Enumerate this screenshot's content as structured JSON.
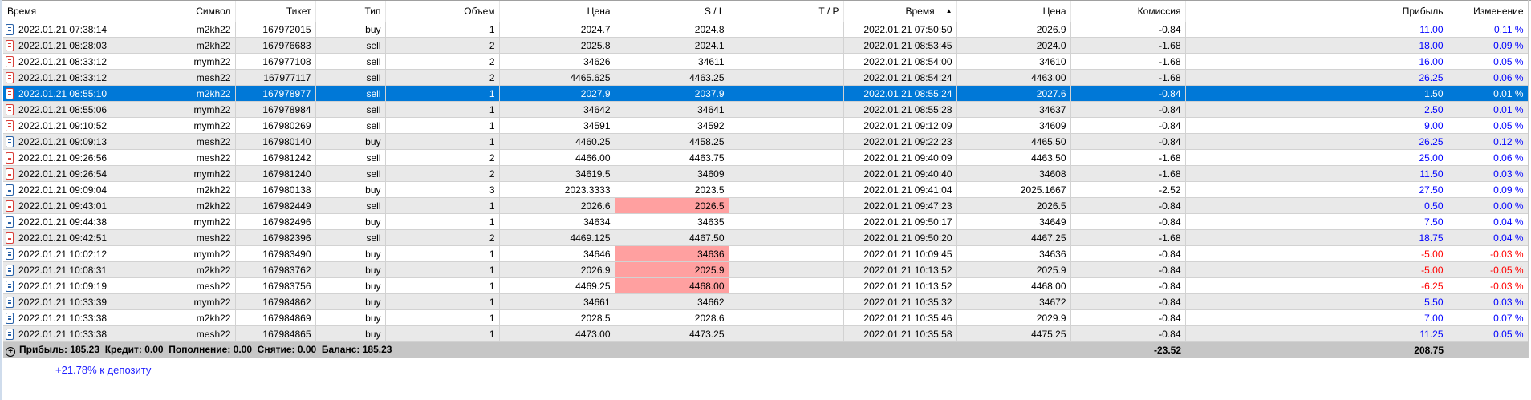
{
  "columns": [
    "Время",
    "Символ",
    "Тикет",
    "Тип",
    "Объем",
    "Цена",
    "S / L",
    "T / P",
    "Время",
    "Цена",
    "Комиссия",
    "Прибыль",
    "Изменение"
  ],
  "sort_column": 8,
  "sort_icon": "sort-ascending-icon",
  "colors": {
    "selected": "#0078d7",
    "profit": "#0000ff",
    "loss": "#ff0000",
    "sl_highlight": "#ffa0a0",
    "buy_icon": "#2a62a8",
    "sell_icon": "#d9403a"
  },
  "rows": [
    {
      "open_time": "2022.01.21 07:38:14",
      "symbol": "m2kh22",
      "ticket": "167972015",
      "type": "buy",
      "volume": "1",
      "open_price": "2024.7",
      "sl": "2024.8",
      "tp": "",
      "close_time": "2022.01.21 07:50:50",
      "close_price": "2026.9",
      "commission": "-0.84",
      "profit": "11.00",
      "change": "0.11 %"
    },
    {
      "open_time": "2022.01.21 08:28:03",
      "symbol": "m2kh22",
      "ticket": "167976683",
      "type": "sell",
      "volume": "2",
      "open_price": "2025.8",
      "sl": "2024.1",
      "tp": "",
      "close_time": "2022.01.21 08:53:45",
      "close_price": "2024.0",
      "commission": "-1.68",
      "profit": "18.00",
      "change": "0.09 %"
    },
    {
      "open_time": "2022.01.21 08:33:12",
      "symbol": "mymh22",
      "ticket": "167977108",
      "type": "sell",
      "volume": "2",
      "open_price": "34626",
      "sl": "34611",
      "tp": "",
      "close_time": "2022.01.21 08:54:00",
      "close_price": "34610",
      "commission": "-1.68",
      "profit": "16.00",
      "change": "0.05 %"
    },
    {
      "open_time": "2022.01.21 08:33:12",
      "symbol": "mesh22",
      "ticket": "167977117",
      "type": "sell",
      "volume": "2",
      "open_price": "4465.625",
      "sl": "4463.25",
      "tp": "",
      "close_time": "2022.01.21 08:54:24",
      "close_price": "4463.00",
      "commission": "-1.68",
      "profit": "26.25",
      "change": "0.06 %"
    },
    {
      "open_time": "2022.01.21 08:55:10",
      "symbol": "m2kh22",
      "ticket": "167978977",
      "type": "sell",
      "volume": "1",
      "open_price": "2027.9",
      "sl": "2037.9",
      "tp": "",
      "close_time": "2022.01.21 08:55:24",
      "close_price": "2027.6",
      "commission": "-0.84",
      "profit": "1.50",
      "change": "0.01 %",
      "selected": true
    },
    {
      "open_time": "2022.01.21 08:55:06",
      "symbol": "mymh22",
      "ticket": "167978984",
      "type": "sell",
      "volume": "1",
      "open_price": "34642",
      "sl": "34641",
      "tp": "",
      "close_time": "2022.01.21 08:55:28",
      "close_price": "34637",
      "commission": "-0.84",
      "profit": "2.50",
      "change": "0.01 %"
    },
    {
      "open_time": "2022.01.21 09:10:52",
      "symbol": "mymh22",
      "ticket": "167980269",
      "type": "sell",
      "volume": "1",
      "open_price": "34591",
      "sl": "34592",
      "tp": "",
      "close_time": "2022.01.21 09:12:09",
      "close_price": "34609",
      "commission": "-0.84",
      "profit": "9.00",
      "change": "0.05 %"
    },
    {
      "open_time": "2022.01.21 09:09:13",
      "symbol": "mesh22",
      "ticket": "167980140",
      "type": "buy",
      "volume": "1",
      "open_price": "4460.25",
      "sl": "4458.25",
      "tp": "",
      "close_time": "2022.01.21 09:22:23",
      "close_price": "4465.50",
      "commission": "-0.84",
      "profit": "26.25",
      "change": "0.12 %"
    },
    {
      "open_time": "2022.01.21 09:26:56",
      "symbol": "mesh22",
      "ticket": "167981242",
      "type": "sell",
      "volume": "2",
      "open_price": "4466.00",
      "sl": "4463.75",
      "tp": "",
      "close_time": "2022.01.21 09:40:09",
      "close_price": "4463.50",
      "commission": "-1.68",
      "profit": "25.00",
      "change": "0.06 %"
    },
    {
      "open_time": "2022.01.21 09:26:54",
      "symbol": "mymh22",
      "ticket": "167981240",
      "type": "sell",
      "volume": "2",
      "open_price": "34619.5",
      "sl": "34609",
      "tp": "",
      "close_time": "2022.01.21 09:40:40",
      "close_price": "34608",
      "commission": "-1.68",
      "profit": "11.50",
      "change": "0.03 %"
    },
    {
      "open_time": "2022.01.21 09:09:04",
      "symbol": "m2kh22",
      "ticket": "167980138",
      "type": "buy",
      "volume": "3",
      "open_price": "2023.3333",
      "sl": "2023.5",
      "tp": "",
      "close_time": "2022.01.21 09:41:04",
      "close_price": "2025.1667",
      "commission": "-2.52",
      "profit": "27.50",
      "change": "0.09 %"
    },
    {
      "open_time": "2022.01.21 09:43:01",
      "symbol": "m2kh22",
      "ticket": "167982449",
      "type": "sell",
      "volume": "1",
      "open_price": "2026.6",
      "sl": "2026.5",
      "tp": "",
      "close_time": "2022.01.21 09:47:23",
      "close_price": "2026.5",
      "commission": "-0.84",
      "profit": "0.50",
      "change": "0.00 %",
      "sl_hit": true
    },
    {
      "open_time": "2022.01.21 09:44:38",
      "symbol": "mymh22",
      "ticket": "167982496",
      "type": "buy",
      "volume": "1",
      "open_price": "34634",
      "sl": "34635",
      "tp": "",
      "close_time": "2022.01.21 09:50:17",
      "close_price": "34649",
      "commission": "-0.84",
      "profit": "7.50",
      "change": "0.04 %"
    },
    {
      "open_time": "2022.01.21 09:42:51",
      "symbol": "mesh22",
      "ticket": "167982396",
      "type": "sell",
      "volume": "2",
      "open_price": "4469.125",
      "sl": "4467.50",
      "tp": "",
      "close_time": "2022.01.21 09:50:20",
      "close_price": "4467.25",
      "commission": "-1.68",
      "profit": "18.75",
      "change": "0.04 %"
    },
    {
      "open_time": "2022.01.21 10:02:12",
      "symbol": "mymh22",
      "ticket": "167983490",
      "type": "buy",
      "volume": "1",
      "open_price": "34646",
      "sl": "34636",
      "tp": "",
      "close_time": "2022.01.21 10:09:45",
      "close_price": "34636",
      "commission": "-0.84",
      "profit": "-5.00",
      "change": "-0.03 %",
      "sl_hit": true
    },
    {
      "open_time": "2022.01.21 10:08:31",
      "symbol": "m2kh22",
      "ticket": "167983762",
      "type": "buy",
      "volume": "1",
      "open_price": "2026.9",
      "sl": "2025.9",
      "tp": "",
      "close_time": "2022.01.21 10:13:52",
      "close_price": "2025.9",
      "commission": "-0.84",
      "profit": "-5.00",
      "change": "-0.05 %",
      "sl_hit": true
    },
    {
      "open_time": "2022.01.21 10:09:19",
      "symbol": "mesh22",
      "ticket": "167983756",
      "type": "buy",
      "volume": "1",
      "open_price": "4469.25",
      "sl": "4468.00",
      "tp": "",
      "close_time": "2022.01.21 10:13:52",
      "close_price": "4468.00",
      "commission": "-0.84",
      "profit": "-6.25",
      "change": "-0.03 %",
      "sl_hit": true
    },
    {
      "open_time": "2022.01.21 10:33:39",
      "symbol": "mymh22",
      "ticket": "167984862",
      "type": "buy",
      "volume": "1",
      "open_price": "34661",
      "sl": "34662",
      "tp": "",
      "close_time": "2022.01.21 10:35:32",
      "close_price": "34672",
      "commission": "-0.84",
      "profit": "5.50",
      "change": "0.03 %"
    },
    {
      "open_time": "2022.01.21 10:33:38",
      "symbol": "m2kh22",
      "ticket": "167984869",
      "type": "buy",
      "volume": "1",
      "open_price": "2028.5",
      "sl": "2028.6",
      "tp": "",
      "close_time": "2022.01.21 10:35:46",
      "close_price": "2029.9",
      "commission": "-0.84",
      "profit": "7.00",
      "change": "0.07 %"
    },
    {
      "open_time": "2022.01.21 10:33:38",
      "symbol": "mesh22",
      "ticket": "167984865",
      "type": "buy",
      "volume": "1",
      "open_price": "4473.00",
      "sl": "4473.25",
      "tp": "",
      "close_time": "2022.01.21 10:35:58",
      "close_price": "4475.25",
      "commission": "-0.84",
      "profit": "11.25",
      "change": "0.05 %"
    }
  ],
  "summary": {
    "expand_icon": "plus-circle-icon",
    "text": "Прибыль: 185.23  Кредит: 0.00  Пополнение: 0.00  Снятие: 0.00  Баланс: 185.23",
    "commission_total": "-23.52",
    "profit_total": "208.75"
  },
  "deposit_note": "+21.78% к депозиту"
}
